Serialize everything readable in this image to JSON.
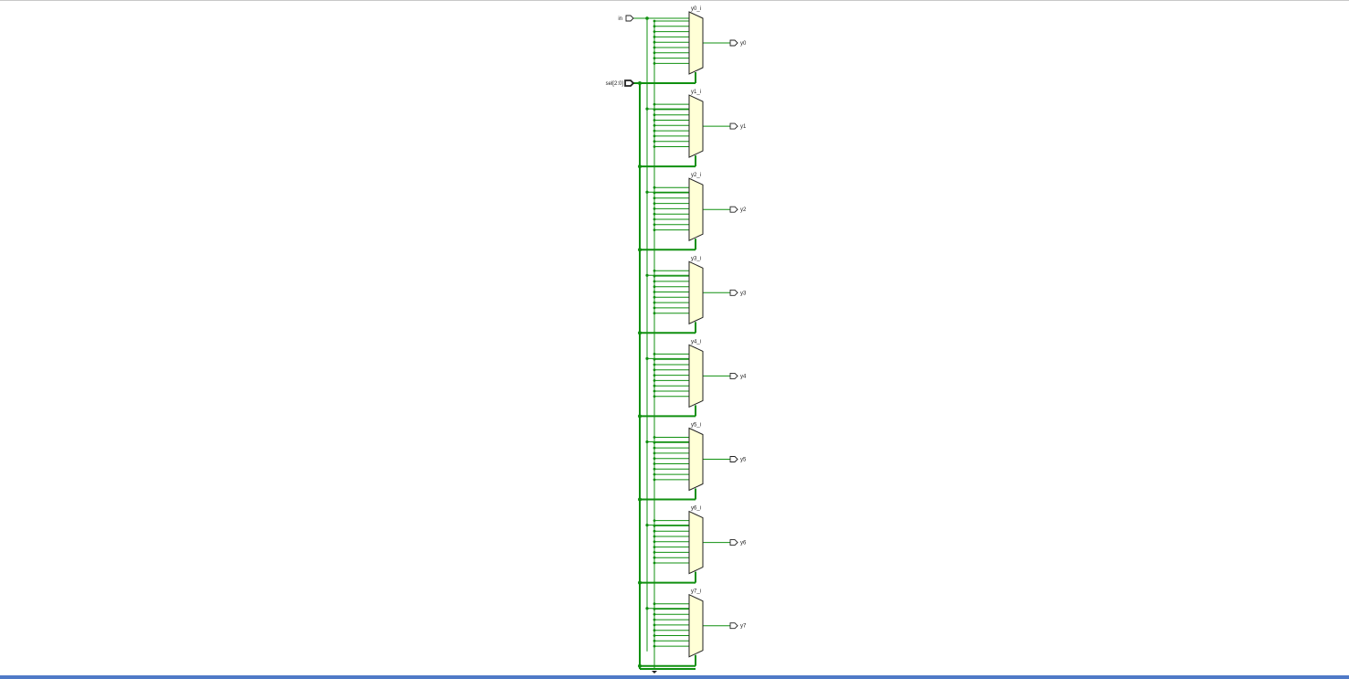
{
  "schematic": {
    "input_ports": [
      "in",
      "sel[2:0]"
    ],
    "instances": [
      {
        "cell": "y0_i",
        "output": "y0"
      },
      {
        "cell": "y1_i",
        "output": "y1"
      },
      {
        "cell": "y2_i",
        "output": "y2"
      },
      {
        "cell": "y3_i",
        "output": "y3"
      },
      {
        "cell": "y4_i",
        "output": "y4"
      },
      {
        "cell": "y5_i",
        "output": "y5"
      },
      {
        "cell": "y6_i",
        "output": "y6"
      },
      {
        "cell": "y7_i",
        "output": "y7"
      }
    ]
  },
  "colors": {
    "wire": "#109010",
    "mux_fill": "#ffffd6",
    "outline": "#222222",
    "bottom_bar": "#4f7ac7"
  }
}
